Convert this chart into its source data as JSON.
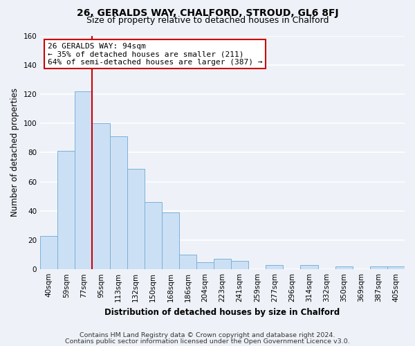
{
  "title": "26, GERALDS WAY, CHALFORD, STROUD, GL6 8FJ",
  "subtitle": "Size of property relative to detached houses in Chalford",
  "xlabel": "Distribution of detached houses by size in Chalford",
  "ylabel": "Number of detached properties",
  "bar_labels": [
    "40sqm",
    "59sqm",
    "77sqm",
    "95sqm",
    "113sqm",
    "132sqm",
    "150sqm",
    "168sqm",
    "186sqm",
    "204sqm",
    "223sqm",
    "241sqm",
    "259sqm",
    "277sqm",
    "296sqm",
    "314sqm",
    "332sqm",
    "350sqm",
    "369sqm",
    "387sqm",
    "405sqm"
  ],
  "bar_values": [
    23,
    81,
    122,
    100,
    91,
    69,
    46,
    39,
    10,
    5,
    7,
    6,
    0,
    3,
    0,
    3,
    0,
    2,
    0,
    2,
    2
  ],
  "bar_color": "#cce0f5",
  "bar_edge_color": "#7ab0d8",
  "vline_color": "#cc0000",
  "annotation_title": "26 GERALDS WAY: 94sqm",
  "annotation_line1": "← 35% of detached houses are smaller (211)",
  "annotation_line2": "64% of semi-detached houses are larger (387) →",
  "annotation_box_color": "#ffffff",
  "annotation_box_edge": "#cc0000",
  "ylim": [
    0,
    160
  ],
  "yticks": [
    0,
    20,
    40,
    60,
    80,
    100,
    120,
    140,
    160
  ],
  "footer1": "Contains HM Land Registry data © Crown copyright and database right 2024.",
  "footer2": "Contains public sector information licensed under the Open Government Licence v3.0.",
  "background_color": "#eef2f8",
  "grid_color": "#ffffff",
  "title_fontsize": 10,
  "subtitle_fontsize": 9,
  "axis_label_fontsize": 8.5,
  "tick_fontsize": 7.5,
  "footer_fontsize": 6.8,
  "annotation_fontsize": 8
}
